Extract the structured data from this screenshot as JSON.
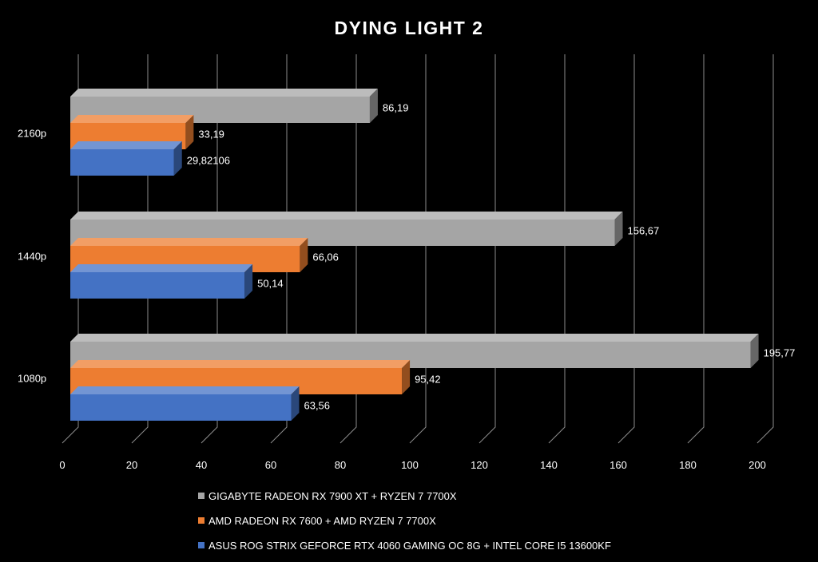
{
  "chart_data": {
    "type": "bar",
    "orientation": "horizontal",
    "style": "3d",
    "title": "DYING LIGHT 2",
    "xlabel": "",
    "ylabel": "",
    "xlim": [
      0,
      200
    ],
    "x_ticks": [
      "0",
      "20",
      "40",
      "60",
      "80",
      "100",
      "120",
      "140",
      "160",
      "180",
      "200"
    ],
    "categories": [
      "2160p",
      "1440p",
      "1080p"
    ],
    "series": [
      {
        "name": "GIGABYTE RADEON RX 7900 XT + RYZEN 7 7700X",
        "color": "#a5a5a5",
        "values": [
          86.19,
          156.67,
          195.77
        ],
        "labels": [
          "86,19",
          "156,67",
          "195,77"
        ]
      },
      {
        "name": "AMD RADEON RX 7600 + AMD RYZEN 7 7700X",
        "color": "#ed7d31",
        "values": [
          33.19,
          66.06,
          95.42
        ],
        "labels": [
          "33,19",
          "66,06",
          "95,42"
        ]
      },
      {
        "name": "ASUS ROG STRIX GEFORCE RTX 4060 GAMING OC 8G + INTEL CORE I5 13600KF",
        "color": "#4472c4",
        "values": [
          29.82106,
          50.14,
          63.56
        ],
        "labels": [
          "29,82106",
          "50,14",
          "63,56"
        ]
      }
    ],
    "grid": true,
    "legend": "bottom"
  }
}
